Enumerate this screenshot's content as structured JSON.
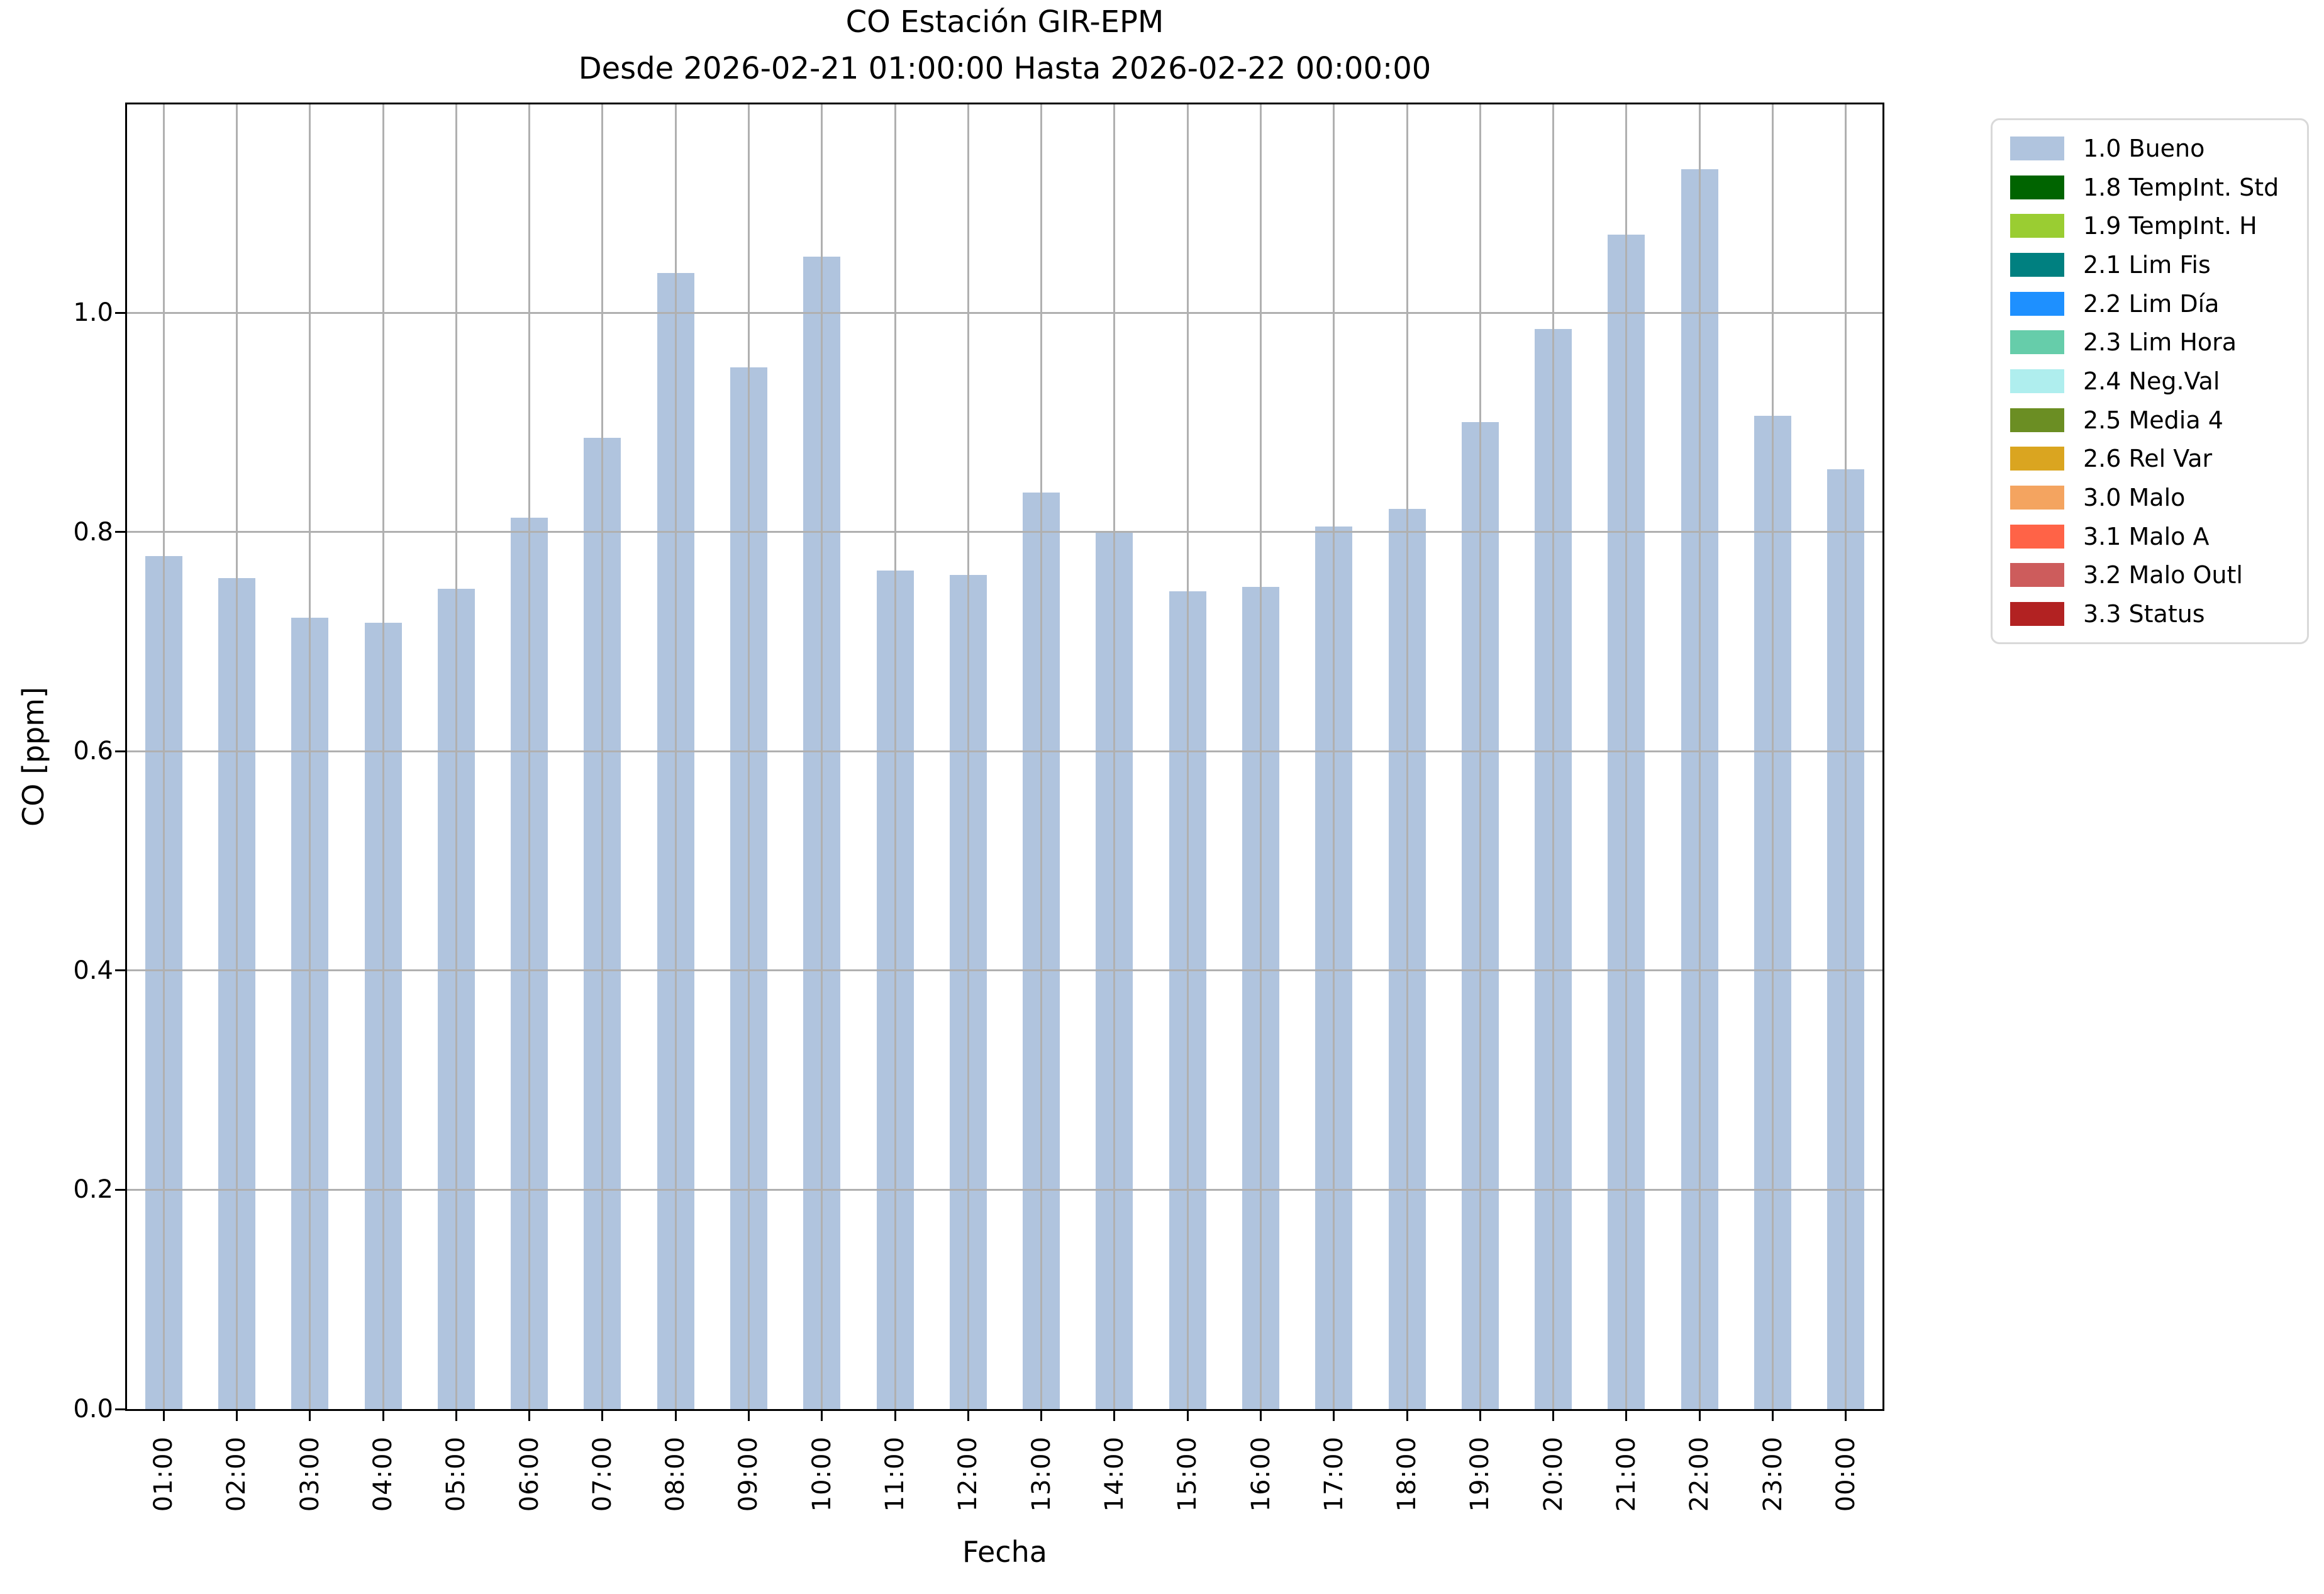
{
  "chart_data": {
    "type": "bar",
    "title": "CO Estación GIR-EPM",
    "subtitle": "Desde 2026-02-21 01:00:00 Hasta 2026-02-22 00:00:00",
    "xlabel": "Fecha",
    "ylabel": "CO [ppm]",
    "categories": [
      "01:00",
      "02:00",
      "03:00",
      "04:00",
      "05:00",
      "06:00",
      "07:00",
      "08:00",
      "09:00",
      "10:00",
      "11:00",
      "12:00",
      "13:00",
      "14:00",
      "15:00",
      "16:00",
      "17:00",
      "18:00",
      "19:00",
      "20:00",
      "21:00",
      "22:00",
      "23:00",
      "00:00"
    ],
    "values": [
      0.778,
      0.758,
      0.722,
      0.717,
      0.748,
      0.813,
      0.886,
      1.036,
      0.95,
      1.051,
      0.765,
      0.761,
      0.836,
      0.801,
      0.746,
      0.75,
      0.805,
      0.821,
      0.9,
      0.985,
      1.071,
      1.131,
      0.906,
      0.857
    ],
    "series_name": "1.0 Bueno",
    "bar_color": "#b0c4de",
    "ylim": [
      0,
      1.19
    ],
    "yticks": [
      "0.0",
      "0.2",
      "0.4",
      "0.6",
      "0.8",
      "1.0"
    ],
    "grid": true,
    "legend_position": "outside-right",
    "legend": [
      {
        "label": "1.0 Bueno",
        "color": "#b0c4de"
      },
      {
        "label": "1.8 TempInt. Std",
        "color": "#006400"
      },
      {
        "label": "1.9 TempInt. H",
        "color": "#9acd32"
      },
      {
        "label": "2.1 Lim Fis",
        "color": "#008080"
      },
      {
        "label": "2.2 Lim Día",
        "color": "#1e90ff"
      },
      {
        "label": "2.3 Lim Hora",
        "color": "#66cdaa"
      },
      {
        "label": "2.4 Neg.Val",
        "color": "#afeeee"
      },
      {
        "label": "2.5 Media 4",
        "color": "#6b8e23"
      },
      {
        "label": "2.6 Rel Var",
        "color": "#daa520"
      },
      {
        "label": "3.0 Malo",
        "color": "#f4a460"
      },
      {
        "label": "3.1 Malo A",
        "color": "#ff6347"
      },
      {
        "label": "3.2 Malo Outl",
        "color": "#cd5c5c"
      },
      {
        "label": "3.3 Status",
        "color": "#b22222"
      }
    ]
  },
  "colors": {
    "grid": "#b0b0b0",
    "spine": "#000000",
    "legend_border": "#d9d9d9",
    "background": "#ffffff"
  }
}
